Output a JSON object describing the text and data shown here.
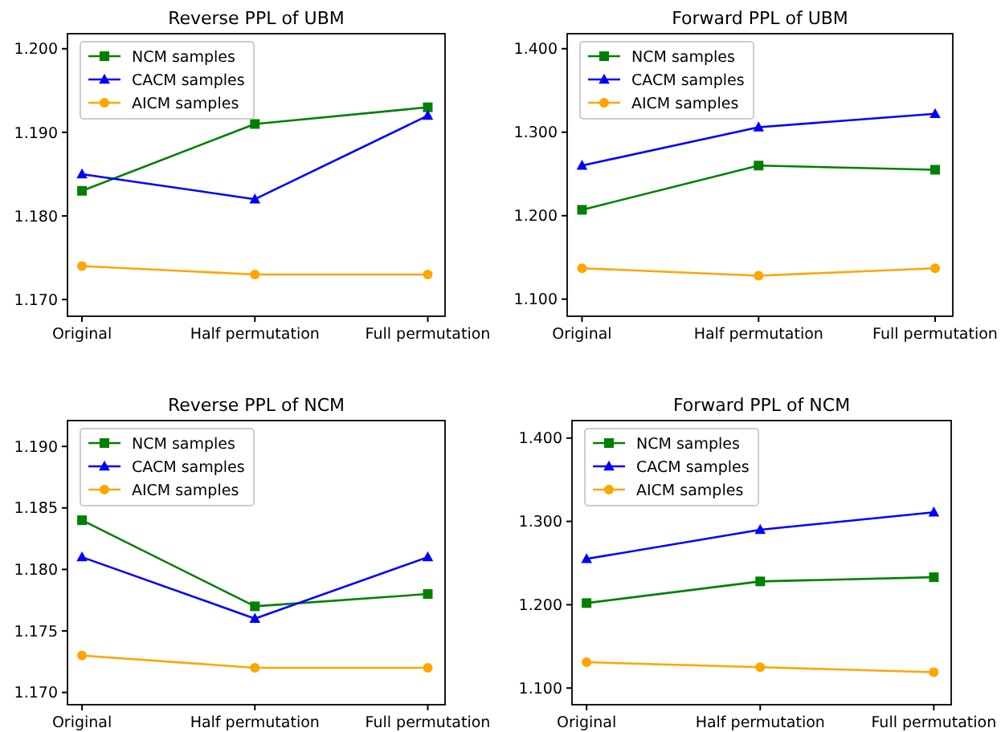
{
  "chart_data": [
    {
      "type": "line",
      "title": "Reverse PPL of UBM",
      "categories": [
        "Original",
        "Half permutation",
        "Full permutation"
      ],
      "ylim": [
        1.168,
        1.2018
      ],
      "yticks": [
        {
          "value": 1.17,
          "label": "1.170"
        },
        {
          "value": 1.18,
          "label": "1.180"
        },
        {
          "value": 1.19,
          "label": "1.190"
        },
        {
          "value": 1.2,
          "label": "1.200"
        }
      ],
      "legend": "top left",
      "grid": false,
      "series": [
        {
          "name": "NCM samples",
          "color": "#008000",
          "marker": "square",
          "values": [
            1.183,
            1.191,
            1.193
          ]
        },
        {
          "name": "CACM samples",
          "color": "#0000ff",
          "marker": "triangle",
          "values": [
            1.185,
            1.182,
            1.192
          ]
        },
        {
          "name": "AICM samples",
          "color": "#ffa500",
          "marker": "circle",
          "values": [
            1.174,
            1.173,
            1.173
          ]
        }
      ]
    },
    {
      "type": "line",
      "title": "Forward PPL of UBM",
      "categories": [
        "Original",
        "Half permutation",
        "Full permutation"
      ],
      "ylim": [
        1.0795,
        1.418
      ],
      "yticks": [
        {
          "value": 1.1,
          "label": "1.100"
        },
        {
          "value": 1.2,
          "label": "1.200"
        },
        {
          "value": 1.3,
          "label": "1.300"
        },
        {
          "value": 1.4,
          "label": "1.400"
        }
      ],
      "legend": "top left",
      "grid": false,
      "series": [
        {
          "name": "NCM samples",
          "color": "#008000",
          "marker": "square",
          "values": [
            1.207,
            1.26,
            1.255
          ]
        },
        {
          "name": "CACM samples",
          "color": "#0000ff",
          "marker": "triangle",
          "values": [
            1.26,
            1.306,
            1.322
          ]
        },
        {
          "name": "AICM samples",
          "color": "#ffa500",
          "marker": "circle",
          "values": [
            1.137,
            1.128,
            1.137
          ]
        }
      ]
    },
    {
      "type": "line",
      "title": "Reverse PPL of NCM",
      "categories": [
        "Original",
        "Half permutation",
        "Full permutation"
      ],
      "ylim": [
        1.169,
        1.1921
      ],
      "yticks": [
        {
          "value": 1.17,
          "label": "1.170"
        },
        {
          "value": 1.175,
          "label": "1.175"
        },
        {
          "value": 1.18,
          "label": "1.180"
        },
        {
          "value": 1.185,
          "label": "1.185"
        },
        {
          "value": 1.19,
          "label": "1.190"
        }
      ],
      "legend": "top left",
      "grid": false,
      "series": [
        {
          "name": "NCM samples",
          "color": "#008000",
          "marker": "square",
          "values": [
            1.184,
            1.177,
            1.178
          ]
        },
        {
          "name": "CACM samples",
          "color": "#0000ff",
          "marker": "triangle",
          "values": [
            1.181,
            1.176,
            1.181
          ]
        },
        {
          "name": "AICM samples",
          "color": "#ffa500",
          "marker": "circle",
          "values": [
            1.173,
            1.172,
            1.172
          ]
        }
      ]
    },
    {
      "type": "line",
      "title": "Forward PPL of NCM",
      "categories": [
        "Original",
        "Half permutation",
        "Full permutation"
      ],
      "ylim": [
        1.08,
        1.421
      ],
      "yticks": [
        {
          "value": 1.1,
          "label": "1.100"
        },
        {
          "value": 1.2,
          "label": "1.200"
        },
        {
          "value": 1.3,
          "label": "1.300"
        },
        {
          "value": 1.4,
          "label": "1.400"
        }
      ],
      "legend": "top left",
      "grid": false,
      "series": [
        {
          "name": "NCM samples",
          "color": "#008000",
          "marker": "square",
          "values": [
            1.202,
            1.228,
            1.233
          ]
        },
        {
          "name": "CACM samples",
          "color": "#0000ff",
          "marker": "triangle",
          "values": [
            1.255,
            1.29,
            1.311
          ]
        },
        {
          "name": "AICM samples",
          "color": "#ffa500",
          "marker": "circle",
          "values": [
            1.131,
            1.125,
            1.119
          ]
        }
      ]
    }
  ]
}
